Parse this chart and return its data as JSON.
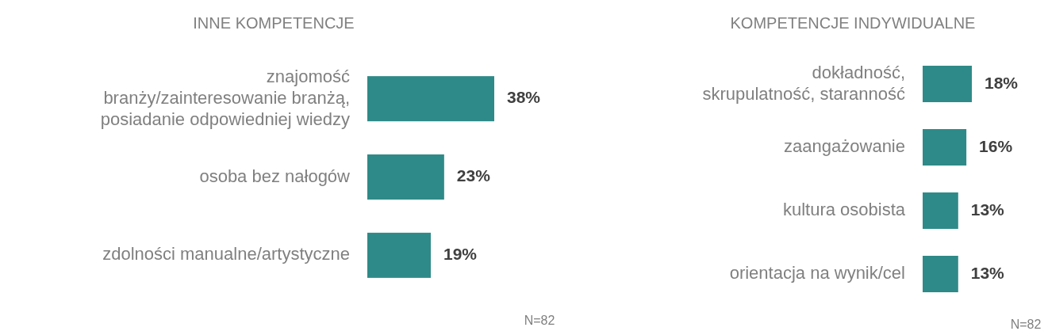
{
  "chart_data": [
    {
      "type": "bar",
      "orientation": "horizontal",
      "title": "INNE KOMPETENCJE",
      "categories": [
        "znajomość\nbranży/zainteresowanie branżą,\nposiadanie odpowiedniej wiedzy",
        "osoba bez nałogów",
        "zdolności manualne/artystyczne"
      ],
      "values": [
        38,
        23,
        19
      ],
      "value_labels": [
        "38%",
        "23%",
        "19%"
      ],
      "color": "#2e8a88",
      "annotations": [
        "N=82"
      ]
    },
    {
      "type": "bar",
      "orientation": "horizontal",
      "title": "KOMPETENCJE INDYWIDUALNE",
      "categories": [
        "dokładność,\nskrupulatność, staranność",
        "zaangażowanie",
        "kultura osobista",
        "orientacja na wynik/cel"
      ],
      "values": [
        18,
        16,
        13,
        13
      ],
      "value_labels": [
        "18%",
        "16%",
        "13%",
        "13%"
      ],
      "color": "#2e8a88",
      "annotations": [
        "N=82"
      ]
    }
  ]
}
